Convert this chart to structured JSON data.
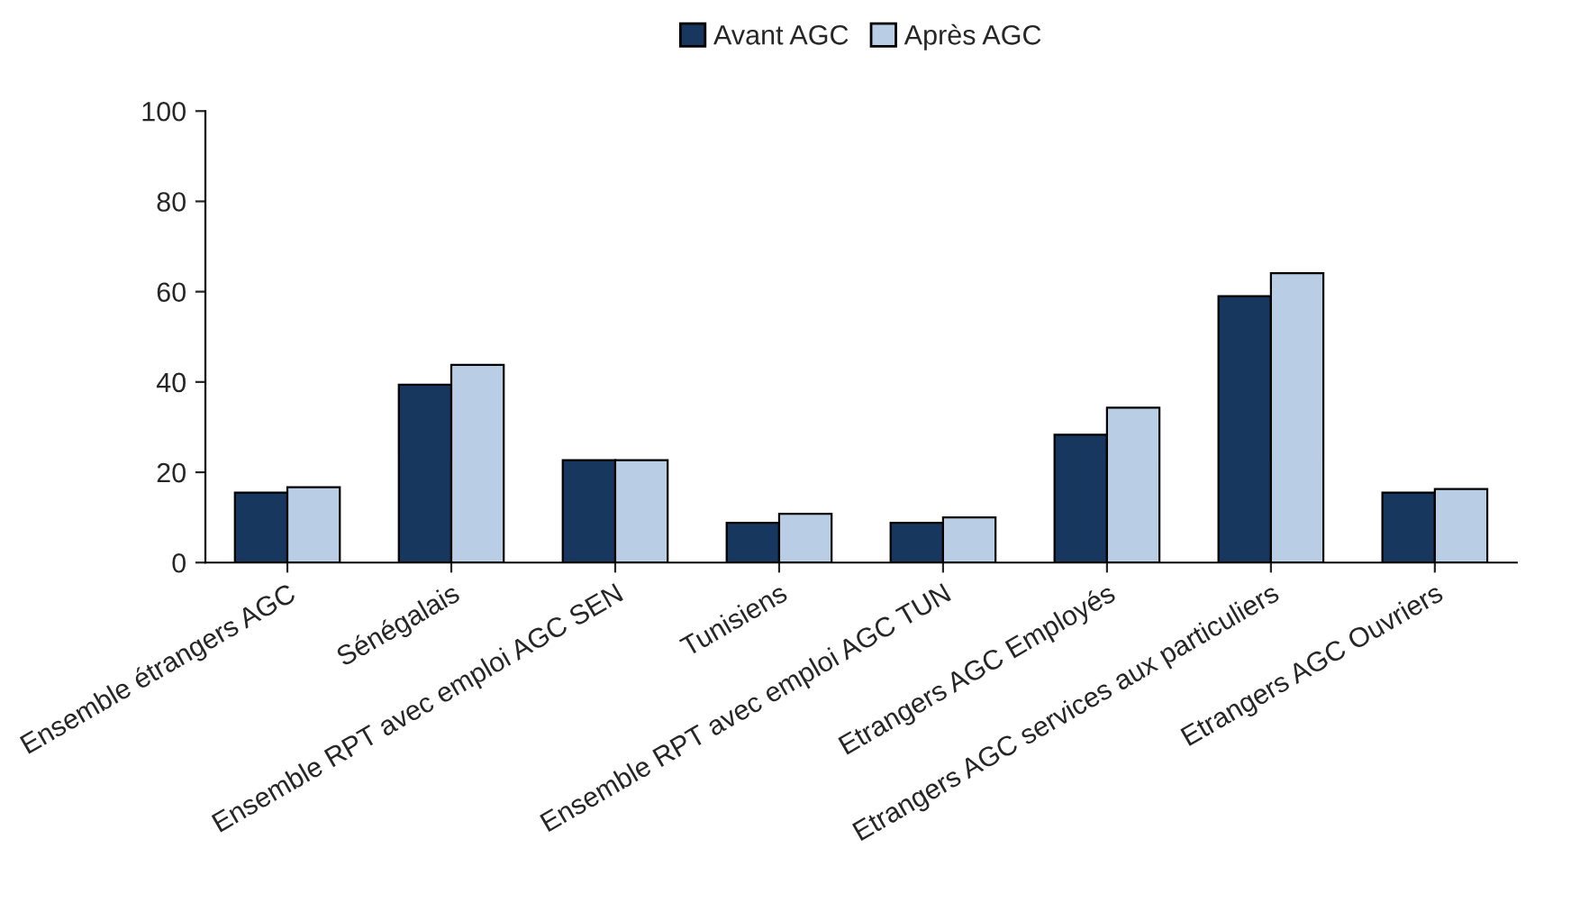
{
  "chart_data": {
    "type": "bar",
    "categories": [
      "Ensemble étrangers AGC",
      "Sénégalais",
      "Ensemble RPT avec emploi AGC SEN",
      "Tunisiens",
      "Ensemble RPT avec emploi AGC TUN",
      "Etrangers AGC Employés",
      "Etrangers AGC services aux particuliers",
      "Etrangers AGC Ouvriers"
    ],
    "series": [
      {
        "name": "Avant AGC",
        "color": "#17375e",
        "values": [
          15.5,
          39.4,
          22.7,
          8.8,
          8.8,
          28.3,
          59,
          15.5
        ]
      },
      {
        "name": "Après AGC",
        "color": "#b9cde5",
        "values": [
          16.7,
          43.8,
          22.7,
          10.8,
          10.0,
          34.3,
          64.1,
          16.3
        ]
      }
    ],
    "ylim": [
      0,
      100
    ],
    "yticks": [
      0,
      20,
      40,
      60,
      80,
      100
    ],
    "grid": false,
    "legend": "top"
  }
}
